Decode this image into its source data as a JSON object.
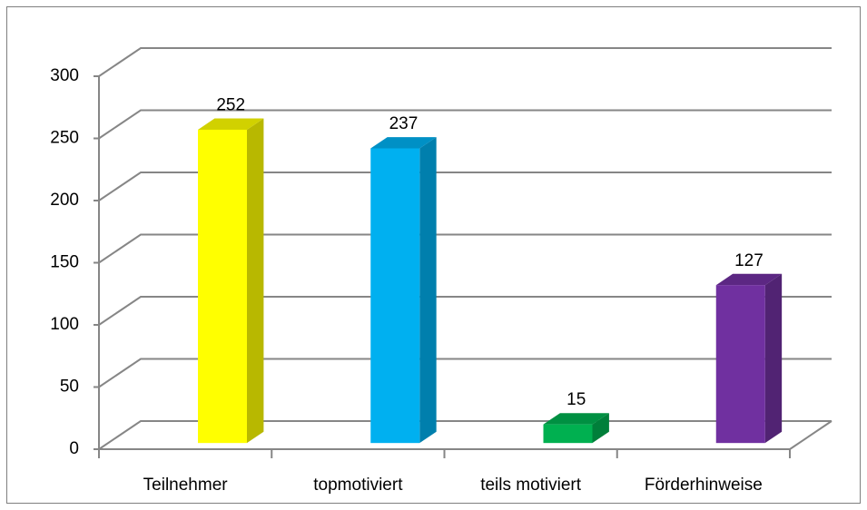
{
  "chart_data": {
    "type": "bar3d",
    "categories": [
      "Teilnehmer",
      "topmotiviert",
      "teils motiviert",
      "Förderhinweise"
    ],
    "values": [
      252,
      237,
      15,
      127
    ],
    "colors": [
      "#ffff00",
      "#00b0f0",
      "#00b050",
      "#7030a0"
    ],
    "ylim": [
      0,
      300
    ],
    "yticks": [
      0,
      50,
      100,
      150,
      200,
      250,
      300
    ],
    "grid": true
  }
}
